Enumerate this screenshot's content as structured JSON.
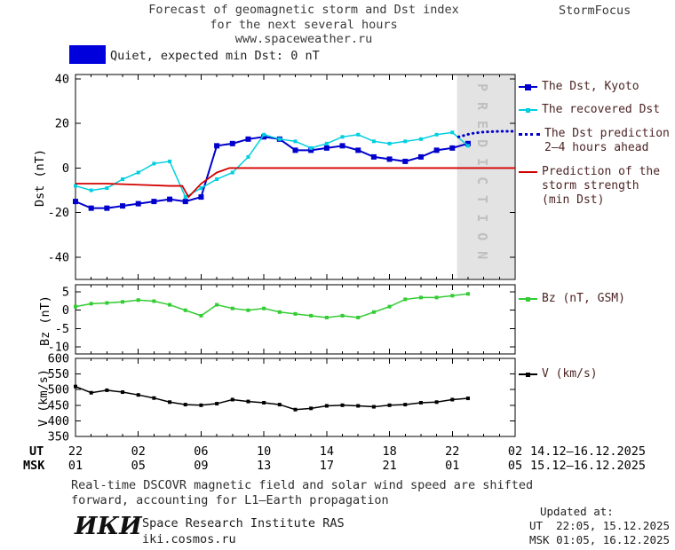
{
  "header": {
    "title_line1": "Forecast of geomagnetic storm and Dst index",
    "title_line2": "for the next several hours",
    "title_line3": "www.spaceweather.ru",
    "brand": "StormFocus"
  },
  "status": {
    "label": "Quiet, expected min Dst: 0 nT",
    "color": "#0000dd"
  },
  "legend": {
    "dst_kyoto": "The Dst, Kyoto",
    "recovered": "The recovered Dst",
    "prediction_l1": "The Dst prediction",
    "prediction_l2": "2–4 hours ahead",
    "storm_l1": "Prediction of the",
    "storm_l2": "storm strength",
    "storm_l3": "(min Dst)",
    "bz": "Bz (nT, GSM)",
    "v": "V (km/s)"
  },
  "axes": {
    "dst_label": "Dst (nT)",
    "bz_label": "Bz (nT)",
    "v_label": "V (km/s)",
    "ut_row_label": "UT",
    "msk_row_label": "MSK",
    "ut_dates": "14.12–16.12.2025",
    "msk_dates": "15.12–16.12.2025"
  },
  "prediction_band_label": "PREDICTION",
  "footer": {
    "note_l1": "Real-time DSCOVR magnetic field and solar wind speed are shifted",
    "note_l2": "forward, accounting for L1–Earth propagation",
    "logo": "ИКИ",
    "institute": "Space Research Institute RAS",
    "site": "iki.cosmos.ru",
    "updated_label": "Updated at:",
    "updated_ut": "UT  22:05, 15.12.2025",
    "updated_msk": "MSK 01:05, 16.12.2025"
  },
  "x_axis": {
    "xlim": [
      0,
      28
    ],
    "xticks": [
      0,
      4,
      8,
      12,
      16,
      20,
      24,
      28
    ],
    "ut_labels": [
      "22",
      "02",
      "06",
      "10",
      "14",
      "18",
      "22",
      "02"
    ],
    "msk_labels": [
      "01",
      "05",
      "09",
      "13",
      "17",
      "21",
      "01",
      "05"
    ],
    "x_unit": "hours from 22:00 UT 14.12.2025"
  },
  "chart_data": [
    {
      "type": "line",
      "panel": "dst",
      "ylabel": "Dst (nT)",
      "ylim": [
        -50,
        42
      ],
      "yticks": [
        40,
        20,
        0,
        -20,
        -40
      ],
      "grid": false,
      "prediction_band": {
        "x_start": 24.3,
        "x_end": 28,
        "color": "#e3e3e3",
        "label": "PREDICTION"
      },
      "series": [
        {
          "name": "The Dst, Kyoto",
          "color": "#0000cc",
          "marker": "square",
          "marker_size": 6,
          "line_width": 2,
          "x": [
            0,
            1,
            2,
            3,
            4,
            5,
            6,
            7,
            8,
            9,
            10,
            11,
            12,
            13,
            14,
            15,
            16,
            17,
            18,
            19,
            20,
            21,
            22,
            23,
            24,
            25
          ],
          "values": [
            -15,
            -18,
            -18,
            -17,
            -16,
            -15,
            -14,
            -15,
            -13,
            10,
            11,
            13,
            14,
            13,
            8,
            8,
            9,
            10,
            8,
            5,
            4,
            3,
            5,
            8,
            9,
            11
          ]
        },
        {
          "name": "The recovered Dst",
          "color": "#00cfe0",
          "marker": "square",
          "marker_size": 4,
          "line_width": 1.5,
          "x": [
            0,
            1,
            2,
            3,
            4,
            5,
            6,
            7,
            8,
            9,
            10,
            11,
            12,
            13,
            14,
            15,
            16,
            17,
            18,
            19,
            20,
            21,
            22,
            23,
            24,
            25
          ],
          "values": [
            -8,
            -10,
            -9,
            -5,
            -2,
            2,
            3,
            -13,
            -9,
            -5,
            -2,
            5,
            15,
            13,
            12,
            9,
            11,
            14,
            15,
            12,
            11,
            12,
            13,
            15,
            16,
            10
          ]
        },
        {
          "name": "The Dst prediction 2–4 hours ahead",
          "color": "#0000cc",
          "style": "dotted",
          "line_width": 3,
          "x": [
            24.4,
            25.2,
            26,
            27,
            28
          ],
          "values": [
            14,
            15.5,
            16.2,
            16.5,
            16.5
          ]
        },
        {
          "name": "Prediction of the storm strength (min Dst)",
          "color": "#d40000",
          "line_width": 1.8,
          "x": [
            0,
            2,
            4,
            6,
            6.8,
            7.2,
            8,
            9,
            9.8,
            28
          ],
          "values": [
            -7,
            -7,
            -7.5,
            -8,
            -8,
            -13,
            -7,
            -2,
            0,
            0
          ]
        }
      ]
    },
    {
      "type": "line",
      "panel": "bz",
      "ylabel": "Bz (nT)",
      "ylim": [
        -12,
        7
      ],
      "yticks": [
        5,
        0,
        -5,
        -10
      ],
      "grid": false,
      "series": [
        {
          "name": "Bz (nT, GSM)",
          "color": "#33cc33",
          "marker": "square",
          "marker_size": 4,
          "line_width": 1.5,
          "x": [
            0,
            1,
            2,
            3,
            4,
            5,
            6,
            7,
            8,
            9,
            10,
            11,
            12,
            13,
            14,
            15,
            16,
            17,
            18,
            19,
            20,
            21,
            22,
            23,
            24,
            25
          ],
          "values": [
            1,
            1.8,
            2,
            2.3,
            2.8,
            2.5,
            1.5,
            0,
            -1.5,
            1.5,
            0.5,
            0,
            0.5,
            -0.5,
            -1,
            -1.5,
            -2,
            -1.5,
            -2,
            -0.5,
            1,
            3,
            3.5,
            3.5,
            4,
            4.5
          ]
        }
      ]
    },
    {
      "type": "line",
      "panel": "v",
      "ylabel": "V (km/s)",
      "ylim": [
        350,
        600
      ],
      "yticks": [
        600,
        550,
        500,
        450,
        400,
        350
      ],
      "grid": false,
      "series": [
        {
          "name": "V (km/s)",
          "color": "#000000",
          "marker": "square",
          "marker_size": 4,
          "line_width": 1.5,
          "x": [
            0,
            1,
            2,
            3,
            4,
            5,
            6,
            7,
            8,
            9,
            10,
            11,
            12,
            13,
            14,
            15,
            16,
            17,
            18,
            19,
            20,
            21,
            22,
            23,
            24,
            25
          ],
          "values": [
            510,
            490,
            498,
            492,
            483,
            473,
            460,
            452,
            450,
            455,
            468,
            462,
            458,
            452,
            436,
            440,
            448,
            450,
            448,
            445,
            450,
            452,
            458,
            460,
            468,
            472
          ]
        }
      ]
    }
  ]
}
